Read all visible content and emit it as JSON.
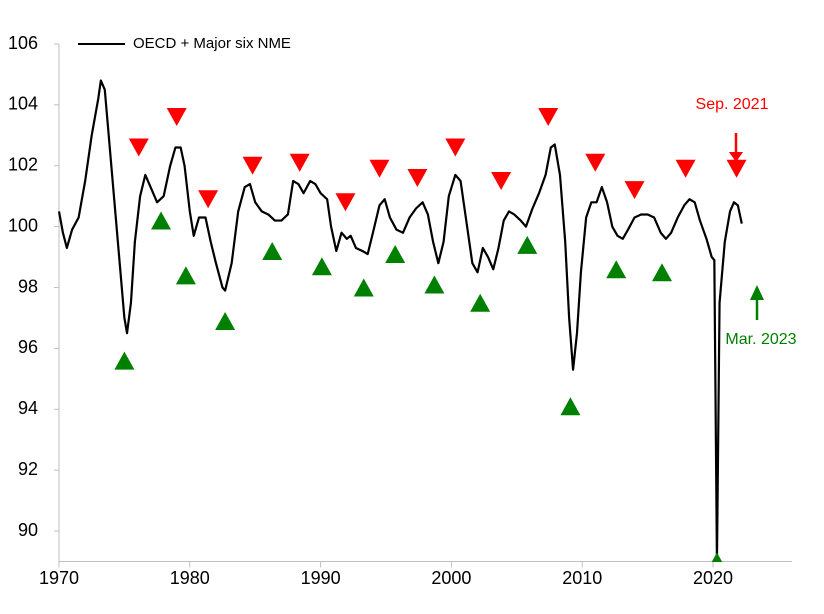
{
  "chart_data": {
    "type": "line",
    "series": [
      {
        "name": "OECD + Major six NME",
        "color": "#000000",
        "x": [
          1970.0,
          1970.3,
          1970.6,
          1971.0,
          1971.5,
          1972.0,
          1972.5,
          1973.0,
          1973.2,
          1973.5,
          1973.8,
          1974.2,
          1974.6,
          1975.0,
          1975.2,
          1975.5,
          1975.8,
          1976.2,
          1976.6,
          1977.0,
          1977.5,
          1978.0,
          1978.5,
          1978.9,
          1979.3,
          1979.6,
          1980.0,
          1980.3,
          1980.7,
          1981.2,
          1981.6,
          1982.0,
          1982.5,
          1982.7,
          1983.2,
          1983.7,
          1984.2,
          1984.6,
          1985.0,
          1985.5,
          1986.0,
          1986.5,
          1987.0,
          1987.5,
          1987.9,
          1988.3,
          1988.7,
          1989.2,
          1989.6,
          1990.0,
          1990.5,
          1990.8,
          1991.2,
          1991.6,
          1992.0,
          1992.3,
          1992.7,
          1993.2,
          1993.6,
          1994.0,
          1994.5,
          1994.9,
          1995.3,
          1995.8,
          1996.3,
          1996.8,
          1997.3,
          1997.8,
          1998.2,
          1998.6,
          1999.0,
          1999.4,
          1999.8,
          2000.3,
          2000.7,
          2001.2,
          2001.6,
          2002.0,
          2002.4,
          2002.8,
          2003.2,
          2003.6,
          2004.0,
          2004.4,
          2004.8,
          2005.3,
          2005.7,
          2006.2,
          2006.7,
          2007.2,
          2007.6,
          2007.9,
          2008.3,
          2008.7,
          2009.0,
          2009.3,
          2009.6,
          2009.9,
          2010.3,
          2010.7,
          2011.1,
          2011.5,
          2011.9,
          2012.3,
          2012.7,
          2013.1,
          2013.5,
          2014.0,
          2014.5,
          2015.0,
          2015.5,
          2016.0,
          2016.4,
          2016.8,
          2017.3,
          2017.8,
          2018.2,
          2018.6,
          2019.0,
          2019.5,
          2019.9,
          2020.1,
          2020.3,
          2020.5,
          2020.9,
          2021.3,
          2021.6,
          2021.9,
          2022.2
        ],
        "y": [
          100.5,
          99.8,
          99.3,
          99.9,
          100.3,
          101.5,
          103.0,
          104.2,
          104.8,
          104.5,
          103.0,
          101.0,
          99.0,
          97.0,
          96.5,
          97.5,
          99.5,
          101.0,
          101.7,
          101.3,
          100.8,
          101.0,
          102.0,
          102.6,
          102.6,
          102.0,
          100.5,
          99.7,
          100.3,
          100.3,
          99.5,
          98.8,
          98.0,
          97.9,
          98.8,
          100.5,
          101.3,
          101.4,
          100.8,
          100.5,
          100.4,
          100.2,
          100.2,
          100.4,
          101.5,
          101.4,
          101.1,
          101.5,
          101.4,
          101.1,
          100.9,
          100.0,
          99.2,
          99.8,
          99.6,
          99.7,
          99.3,
          99.2,
          99.1,
          99.8,
          100.7,
          100.9,
          100.3,
          99.9,
          99.8,
          100.3,
          100.6,
          100.8,
          100.4,
          99.5,
          98.8,
          99.5,
          101.0,
          101.7,
          101.5,
          100.0,
          98.8,
          98.5,
          99.3,
          99.0,
          98.6,
          99.3,
          100.2,
          100.5,
          100.4,
          100.2,
          100.0,
          100.6,
          101.1,
          101.7,
          102.6,
          102.7,
          101.7,
          99.5,
          97.0,
          95.3,
          96.5,
          98.5,
          100.3,
          100.8,
          100.8,
          101.3,
          100.8,
          100.0,
          99.7,
          99.6,
          99.9,
          100.3,
          100.4,
          100.4,
          100.3,
          99.8,
          99.6,
          99.8,
          100.3,
          100.7,
          100.9,
          100.8,
          100.2,
          99.6,
          99.0,
          98.9,
          89.0,
          97.5,
          99.5,
          100.5,
          100.8,
          100.7,
          100.1
        ]
      }
    ],
    "peaks": {
      "color": "#ff0000",
      "x": [
        1976.1,
        1979.0,
        1981.4,
        1984.8,
        1988.4,
        1991.9,
        1994.5,
        1997.4,
        2000.3,
        2003.8,
        2007.4,
        2011.0,
        2014.0,
        2017.9,
        2021.8
      ],
      "y": [
        102.6,
        103.6,
        100.9,
        102.0,
        102.1,
        100.8,
        101.9,
        101.6,
        102.6,
        101.5,
        103.6,
        102.1,
        101.2,
        101.9,
        101.9
      ]
    },
    "troughs": {
      "color": "#008000",
      "x": [
        1975.0,
        1977.8,
        1979.7,
        1982.7,
        1986.3,
        1990.1,
        1993.3,
        1995.7,
        1998.7,
        2002.2,
        2005.8,
        2009.1,
        2012.6,
        2016.1,
        2020.3
      ],
      "y": [
        95.6,
        100.2,
        98.4,
        96.9,
        99.2,
        98.7,
        98.0,
        99.1,
        98.1,
        97.5,
        99.4,
        94.1,
        98.6,
        98.5,
        89.0
      ]
    },
    "annotations": [
      {
        "text": "Sep. 2021",
        "color": "#ff0000"
      },
      {
        "text": "Mar. 2023",
        "color": "#008000"
      }
    ],
    "xlim": [
      1970,
      2026
    ],
    "xticks": [
      1970,
      1980,
      1990,
      2000,
      2010,
      2020
    ],
    "ylim": [
      89,
      106
    ],
    "yticks": [
      90,
      92,
      94,
      96,
      98,
      100,
      102,
      104,
      106
    ]
  }
}
